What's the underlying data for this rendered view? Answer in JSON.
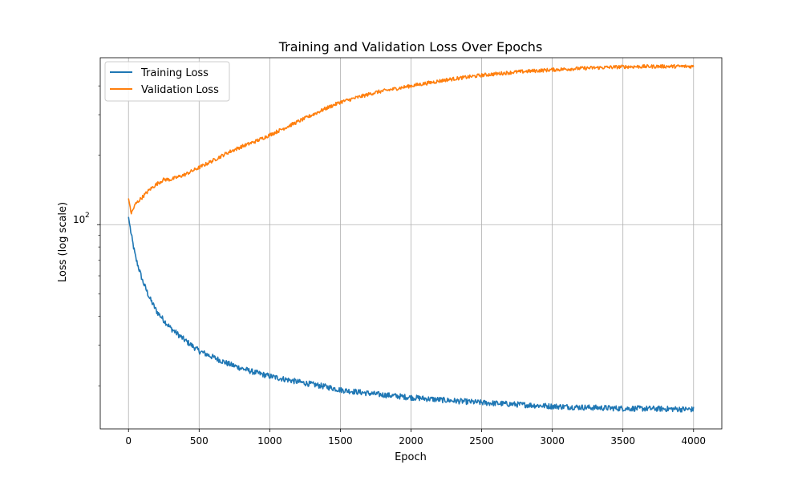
{
  "chart_data": {
    "type": "line",
    "title": "Training and Validation Loss Over Epochs",
    "xlabel": "Epoch",
    "ylabel": "Loss (log scale)",
    "xlim": [
      -200,
      4200
    ],
    "ylim": [
      13,
      530
    ],
    "yscale": "log",
    "x_ticks": [
      0,
      500,
      1000,
      1500,
      2000,
      2500,
      3000,
      3500,
      4000
    ],
    "x_tick_labels": [
      "0",
      "500",
      "1000",
      "1500",
      "2000",
      "2500",
      "3000",
      "3500",
      "4000"
    ],
    "y_major_ticks": [
      100
    ],
    "y_major_tick_base": "10",
    "y_major_tick_exp": "2",
    "y_minor_ticks": [
      20,
      30,
      40,
      50,
      60,
      70,
      80,
      90,
      200,
      300,
      400
    ],
    "grid": true,
    "legend_position": "top-left",
    "x": [
      0,
      20,
      50,
      100,
      150,
      200,
      250,
      300,
      400,
      500,
      600,
      700,
      800,
      900,
      1000,
      1200,
      1400,
      1500,
      1750,
      2000,
      2250,
      2500,
      2750,
      3000,
      3250,
      3500,
      3750,
      4000
    ],
    "series": [
      {
        "name": "Training Loss",
        "color": "#1f77b4",
        "values": [
          108,
          90,
          72,
          57,
          48,
          42,
          38.5,
          35.5,
          31.5,
          28.3,
          26.6,
          25,
          23.8,
          22.8,
          22,
          20.8,
          19.8,
          19.2,
          18.4,
          17.8,
          17.3,
          16.9,
          16.6,
          16.3,
          16.1,
          15.95,
          15.9,
          15.8
        ]
      },
      {
        "name": "Validation Loss",
        "color": "#ff7f0e",
        "values": [
          130,
          112,
          123,
          132,
          142,
          150,
          157,
          157,
          165,
          177,
          190,
          205,
          218,
          230,
          245,
          280,
          320,
          340,
          375,
          400,
          425,
          445,
          460,
          470,
          478,
          484,
          486,
          486
        ]
      }
    ]
  }
}
